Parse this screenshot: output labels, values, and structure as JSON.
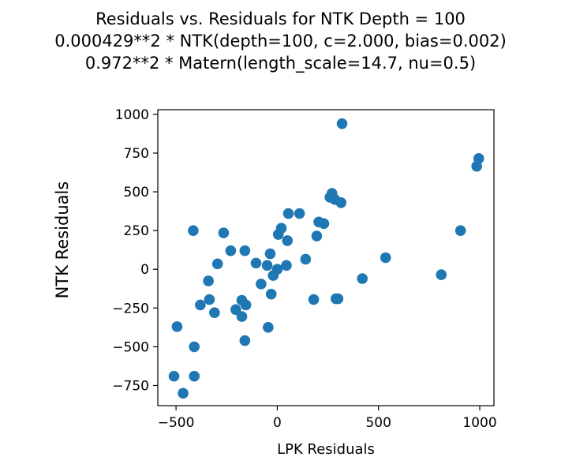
{
  "chart_data": {
    "type": "scatter",
    "title": [
      "Residuals vs. Residuals for NTK Depth = 100",
      "0.000429**2 * NTK(depth=100, c=2.000, bias=0.002)",
      "0.972**2 * Matern(length_scale=14.7, nu=0.5)"
    ],
    "xlabel": "LPK Residuals",
    "ylabel": "NTK Residuals",
    "xlim": [
      -590,
      1070
    ],
    "ylim": [
      -880,
      1030
    ],
    "xticks": [
      -500,
      0,
      500,
      1000
    ],
    "xtick_labels": [
      "−500",
      "0",
      "500",
      "1000"
    ],
    "yticks": [
      -750,
      -500,
      -250,
      0,
      250,
      500,
      750,
      1000
    ],
    "ytick_labels": [
      "−750",
      "−500",
      "−250",
      "0",
      "250",
      "500",
      "750",
      "1000"
    ],
    "grid": false,
    "marker_color": "#1f77b4",
    "points": [
      [
        -510,
        -690
      ],
      [
        -495,
        -370
      ],
      [
        -465,
        -800
      ],
      [
        -415,
        250
      ],
      [
        -410,
        -500
      ],
      [
        -410,
        -690
      ],
      [
        -380,
        -230
      ],
      [
        -340,
        -75
      ],
      [
        -335,
        -195
      ],
      [
        -310,
        -280
      ],
      [
        -295,
        35
      ],
      [
        -265,
        235
      ],
      [
        -230,
        120
      ],
      [
        -205,
        -260
      ],
      [
        -175,
        -200
      ],
      [
        -175,
        -305
      ],
      [
        -160,
        120
      ],
      [
        -160,
        -460
      ],
      [
        -155,
        -230
      ],
      [
        -105,
        40
      ],
      [
        -80,
        -95
      ],
      [
        -50,
        25
      ],
      [
        -45,
        -375
      ],
      [
        -35,
        100
      ],
      [
        -30,
        -160
      ],
      [
        -20,
        -40
      ],
      [
        0,
        0
      ],
      [
        5,
        225
      ],
      [
        20,
        265
      ],
      [
        45,
        25
      ],
      [
        50,
        185
      ],
      [
        55,
        360
      ],
      [
        110,
        360
      ],
      [
        140,
        65
      ],
      [
        180,
        -195
      ],
      [
        195,
        215
      ],
      [
        205,
        305
      ],
      [
        230,
        295
      ],
      [
        260,
        465
      ],
      [
        270,
        490
      ],
      [
        285,
        450
      ],
      [
        290,
        -190
      ],
      [
        300,
        -190
      ],
      [
        315,
        430
      ],
      [
        320,
        940
      ],
      [
        420,
        -60
      ],
      [
        535,
        75
      ],
      [
        810,
        -35
      ],
      [
        905,
        250
      ],
      [
        985,
        665
      ],
      [
        995,
        715
      ]
    ]
  }
}
